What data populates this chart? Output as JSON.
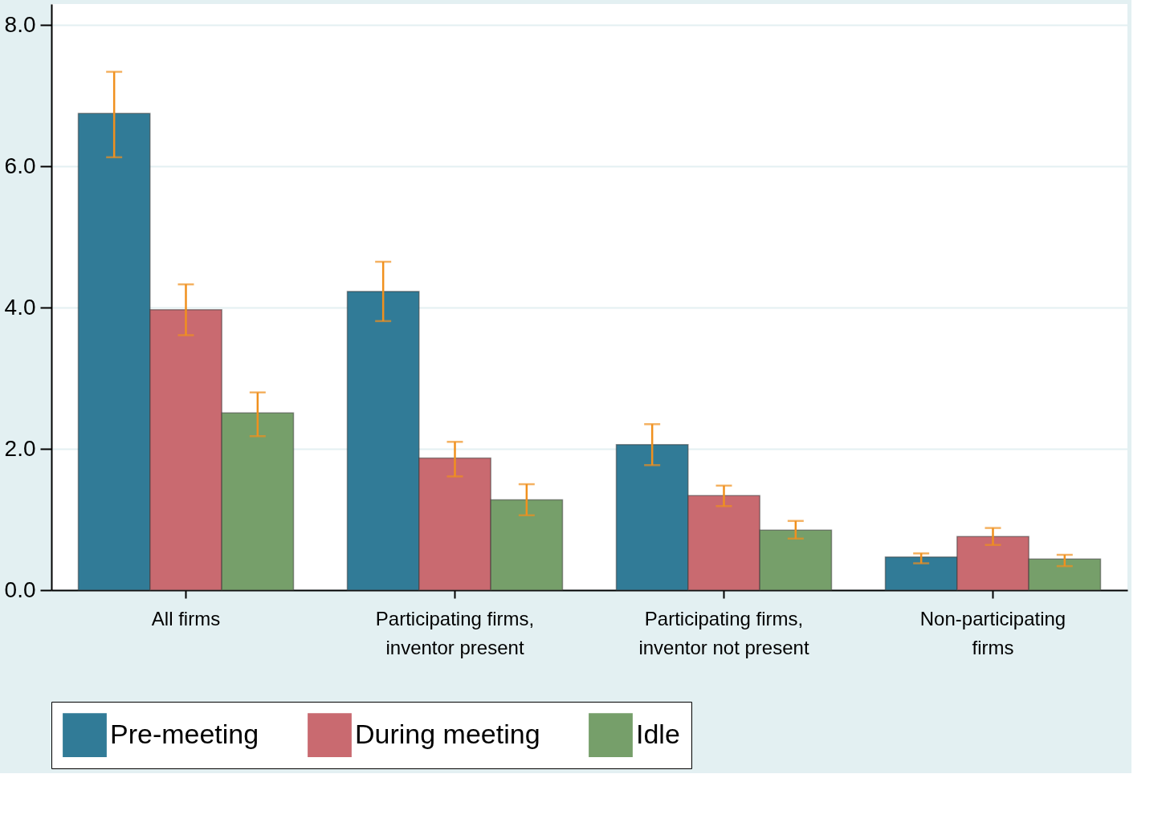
{
  "chart_data": {
    "type": "bar",
    "categories": [
      "All firms",
      "Participating firms,\ninventor present",
      "Participating firms,\ninventor not present",
      "Non-participating\nfirms"
    ],
    "series": [
      {
        "name": "Pre-meeting",
        "color": "#317b97",
        "values": [
          6.75,
          4.23,
          2.06,
          0.47
        ],
        "errors": [
          [
            6.13,
            7.34
          ],
          [
            3.81,
            4.65
          ],
          [
            1.77,
            2.35
          ],
          [
            0.38,
            0.52
          ]
        ]
      },
      {
        "name": "During meeting",
        "color": "#c96a70",
        "values": [
          3.97,
          1.87,
          1.34,
          0.76
        ],
        "errors": [
          [
            3.61,
            4.33
          ],
          [
            1.61,
            2.1
          ],
          [
            1.19,
            1.48
          ],
          [
            0.64,
            0.88
          ]
        ]
      },
      {
        "name": "Idle",
        "color": "#769f6a",
        "values": [
          2.51,
          1.28,
          0.85,
          0.44
        ],
        "errors": [
          [
            2.18,
            2.8
          ],
          [
            1.06,
            1.5
          ],
          [
            0.73,
            0.98
          ],
          [
            0.34,
            0.5
          ]
        ]
      }
    ],
    "ylim": [
      0,
      8.3
    ],
    "yticks": [
      {
        "value": 0,
        "label": "0.0"
      },
      {
        "value": 2,
        "label": "2.0"
      },
      {
        "value": 4,
        "label": "4.0"
      },
      {
        "value": 6,
        "label": "6.0"
      },
      {
        "value": 8,
        "label": "8.0"
      }
    ],
    "grid": "y",
    "legend": "bottom"
  }
}
